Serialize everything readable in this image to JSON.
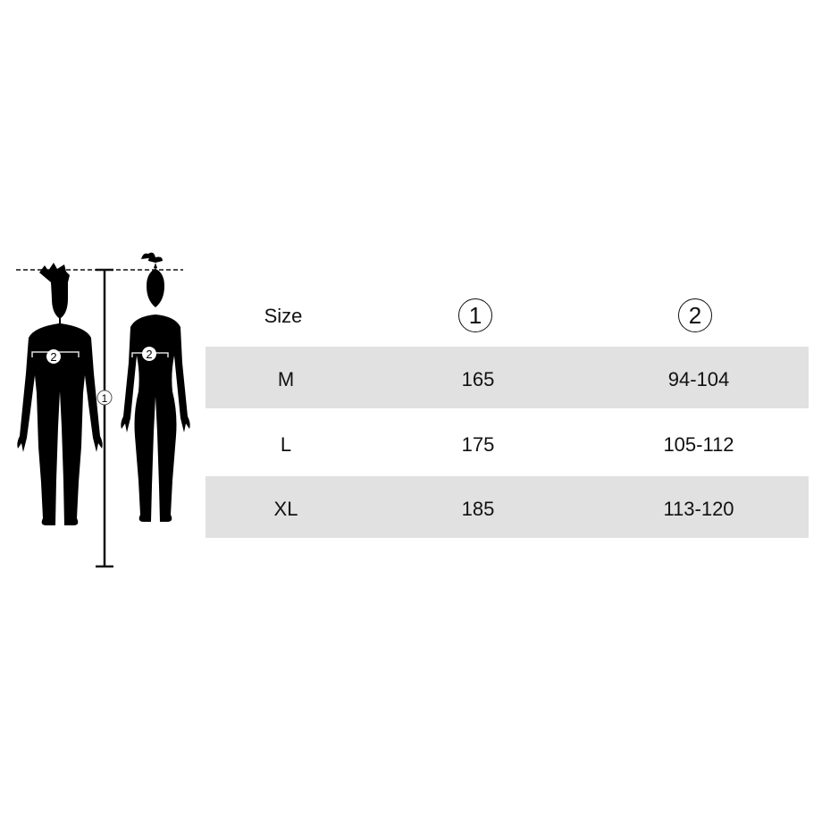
{
  "figures": {
    "height_marker": "1",
    "chest_marker": "2"
  },
  "table": {
    "headers": [
      "Size",
      "1",
      "2"
    ],
    "rows": [
      {
        "size": "M",
        "height": "165",
        "chest": "94-104"
      },
      {
        "size": "L",
        "height": "175",
        "chest": "105-112"
      },
      {
        "size": "XL",
        "height": "185",
        "chest": "113-120"
      }
    ]
  },
  "colors": {
    "band": "#e1e1e1",
    "silhouette": "#000000"
  }
}
